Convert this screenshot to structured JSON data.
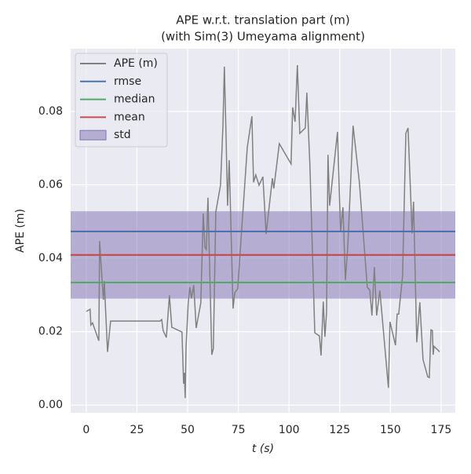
{
  "chart_data": {
    "type": "line",
    "title": "APE w.r.t. translation part (m)",
    "subtitle": "(with Sim(3) Umeyama alignment)",
    "x_label": "t (s)",
    "y_label": "APE (m)",
    "xlim": [
      -7.7,
      182
    ],
    "ylim": [
      -0.0021,
      0.0971
    ],
    "xticks": [
      0,
      25,
      50,
      75,
      100,
      125,
      150,
      175
    ],
    "yticks": [
      {
        "value": 0,
        "label": "0.00"
      },
      0.02,
      0.04,
      0.06,
      0.08
    ],
    "grid": true,
    "legend": "upper-left",
    "series": [
      {
        "name": "APE (m)",
        "color": "#808080",
        "x": [
          0,
          1.9,
          2.3,
          3.1,
          6.2,
          6.6,
          7.7,
          8.5,
          8.9,
          9.3,
          10.5,
          12,
          36.4,
          37.2,
          37.9,
          39.5,
          41,
          42.2,
          47.2,
          48,
          48.4,
          48.8,
          49.2,
          50.3,
          51.1,
          51.9,
          53,
          54.2,
          56.5,
          57.7,
          58.5,
          59.2,
          60,
          61.9,
          62.7,
          63.9,
          66.2,
          67.4,
          68.1,
          68.9,
          69.7,
          70.5,
          72.4,
          73.2,
          74.7,
          79.4,
          81.7,
          82.5,
          83.6,
          85.2,
          87.1,
          88.7,
          91.8,
          92.5,
          95.2,
          101,
          101.8,
          103,
          104.1,
          105.3,
          108,
          108.8,
          110.3,
          112.7,
          115,
          115.8,
          116.9,
          117.7,
          118.5,
          119.2,
          120,
          123.9,
          125.4,
          126.6,
          127.8,
          129,
          131.6,
          134.7,
          138.6,
          139.8,
          140.9,
          142.1,
          143.2,
          144.8,
          149,
          149.8,
          152.5,
          153.3,
          154.1,
          156,
          157.6,
          158.7,
          160.7,
          161.4,
          163,
          164.5,
          166.1,
          168.4,
          169.2,
          170,
          170.7,
          171.1,
          171.5,
          173.4,
          174.2
        ],
        "values": [
          0.0255,
          0.0261,
          0.0218,
          0.0224,
          0.0175,
          0.0447,
          0.0349,
          0.0287,
          0.0338,
          0.0287,
          0.0145,
          0.0229,
          0.0229,
          0.0233,
          0.0203,
          0.0184,
          0.0299,
          0.0212,
          0.0199,
          0.0058,
          0.0088,
          0.0019,
          0.0158,
          0.028,
          0.0321,
          0.0291,
          0.0327,
          0.021,
          0.0278,
          0.0522,
          0.043,
          0.0424,
          0.0565,
          0.0137,
          0.0154,
          0.0526,
          0.0599,
          0.0761,
          0.0922,
          0.074,
          0.0543,
          0.0667,
          0.0263,
          0.0306,
          0.0317,
          0.0702,
          0.0787,
          0.0607,
          0.0627,
          0.0599,
          0.0622,
          0.0466,
          0.0618,
          0.059,
          0.0712,
          0.0657,
          0.0811,
          0.0772,
          0.0926,
          0.074,
          0.0755,
          0.0851,
          0.0652,
          0.0197,
          0.0188,
          0.0135,
          0.0282,
          0.0186,
          0.0252,
          0.0682,
          0.0543,
          0.0744,
          0.0473,
          0.0539,
          0.034,
          0.0434,
          0.0761,
          0.0607,
          0.0321,
          0.0314,
          0.0244,
          0.0376,
          0.0244,
          0.0312,
          0.0047,
          0.0227,
          0.0163,
          0.0248,
          0.0248,
          0.0351,
          0.074,
          0.0755,
          0.0468,
          0.0554,
          0.0171,
          0.028,
          0.0124,
          0.0077,
          0.0075,
          0.0205,
          0.0203,
          0.0137,
          0.016,
          0.015,
          0.0145
        ]
      }
    ],
    "reference_lines": [
      {
        "name": "rmse",
        "value": 0.0473,
        "color": "#4c72b0"
      },
      {
        "name": "median",
        "value": 0.0334,
        "color": "#55a868"
      },
      {
        "name": "mean",
        "value": 0.0409,
        "color": "#c44e52"
      }
    ],
    "std": {
      "name": "std",
      "value": 0.0119,
      "color": "#8172b2"
    }
  }
}
